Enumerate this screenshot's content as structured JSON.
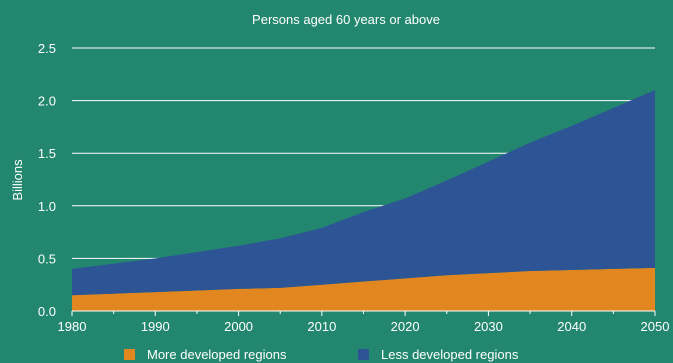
{
  "chart_data": {
    "type": "area",
    "stacked": true,
    "title": "Persons aged 60 years or above",
    "ylabel": "Billions",
    "xlabel": "",
    "x": [
      1980,
      1990,
      2000,
      2005,
      2010,
      2015,
      2020,
      2025,
      2030,
      2035,
      2040,
      2045,
      2050
    ],
    "xlim": [
      1980,
      2050
    ],
    "ylim": [
      0,
      2.5
    ],
    "x_ticks": [
      "1980",
      "1990",
      "2000",
      "2010",
      "2020",
      "2030",
      "2040",
      "2050"
    ],
    "y_ticks": [
      "0.0",
      "0.5",
      "1.0",
      "1.5",
      "2.0",
      "2.5"
    ],
    "grid": "horizontal",
    "legend_position": "bottom",
    "series": [
      {
        "name": "More developed regions",
        "color": "#e2871f",
        "values": [
          0.15,
          0.18,
          0.21,
          0.22,
          0.25,
          0.28,
          0.31,
          0.34,
          0.36,
          0.38,
          0.39,
          0.4,
          0.41
        ]
      },
      {
        "name": "Less developed regions",
        "color": "#2d5495",
        "values": [
          0.25,
          0.32,
          0.41,
          0.47,
          0.54,
          0.66,
          0.76,
          0.9,
          1.06,
          1.22,
          1.37,
          1.53,
          1.69
        ]
      }
    ]
  }
}
